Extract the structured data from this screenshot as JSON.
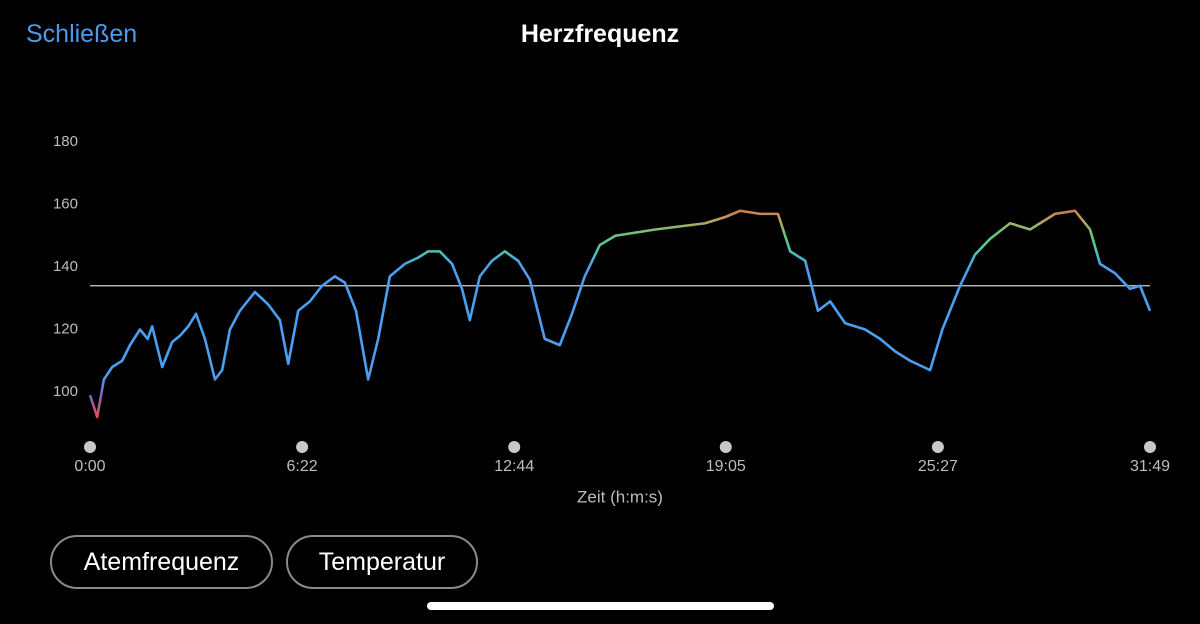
{
  "header": {
    "close": "Schließen",
    "title": "Herzfrequenz"
  },
  "chart_data": {
    "type": "line",
    "x_label": "Zeit (h:m:s)",
    "xlim": [
      0,
      1909
    ],
    "ylim": [
      88,
      180
    ],
    "xticks": [
      {
        "value": 0,
        "label": "0:00"
      },
      {
        "value": 382,
        "label": "6:22"
      },
      {
        "value": 764,
        "label": "12:44"
      },
      {
        "value": 1145,
        "label": "19:05"
      },
      {
        "value": 1527,
        "label": "25:27"
      },
      {
        "value": 1909,
        "label": "31:49"
      }
    ],
    "yticks": [
      100,
      120,
      140,
      160,
      180
    ],
    "reference_line": 134,
    "reference_color": "#d0d0d0",
    "color_scale": [
      {
        "value": 160,
        "color": "#dd5f45"
      },
      {
        "value": 155,
        "color": "#b7a45a"
      },
      {
        "value": 150,
        "color": "#63c77e"
      },
      {
        "value": 145,
        "color": "#4ec0b4"
      },
      {
        "value": 140,
        "color": "#4a9ff0"
      },
      {
        "value": 106,
        "color": "#4a9ff0"
      },
      {
        "value": 99,
        "color": "#8560c0"
      },
      {
        "value": 92,
        "color": "#e2504a"
      }
    ],
    "series": [
      {
        "name": "Herzfrequenz",
        "x": [
          0,
          13,
          25,
          40,
          58,
          72,
          90,
          104,
          112,
          130,
          148,
          162,
          177,
          191,
          207,
          225,
          238,
          252,
          270,
          297,
          321,
          342,
          357,
          375,
          396,
          418,
          441,
          459,
          479,
          501,
          519,
          540,
          567,
          591,
          609,
          630,
          652,
          670,
          684,
          702,
          724,
          747,
          771,
          792,
          819,
          846,
          868,
          891,
          918,
          946,
          982,
          1018,
          1063,
          1108,
          1144,
          1171,
          1207,
          1239,
          1261,
          1288,
          1311,
          1333,
          1360,
          1396,
          1423,
          1450,
          1477,
          1513,
          1535,
          1567,
          1594,
          1621,
          1657,
          1693,
          1738,
          1774,
          1801,
          1819,
          1846,
          1873,
          1891,
          1909
        ],
        "values": [
          99,
          92,
          104,
          108,
          110,
          115,
          120,
          117,
          121,
          108,
          116,
          118,
          121,
          125,
          117,
          104,
          107,
          120,
          126,
          132,
          128,
          123,
          109,
          126,
          129,
          134,
          137,
          135,
          126,
          104,
          117,
          137,
          141,
          143,
          145,
          145,
          141,
          133,
          123,
          137,
          142,
          145,
          142,
          136,
          117,
          115,
          125,
          137,
          147,
          150,
          151,
          152,
          153,
          154,
          156,
          158,
          157,
          157,
          145,
          142,
          126,
          129,
          122,
          120,
          117,
          113,
          110,
          107,
          120,
          134,
          144,
          149,
          154,
          152,
          157,
          158,
          152,
          141,
          138,
          133,
          134,
          126
        ]
      }
    ]
  },
  "buttons": [
    "Atemfrequenz",
    "Temperatur"
  ]
}
